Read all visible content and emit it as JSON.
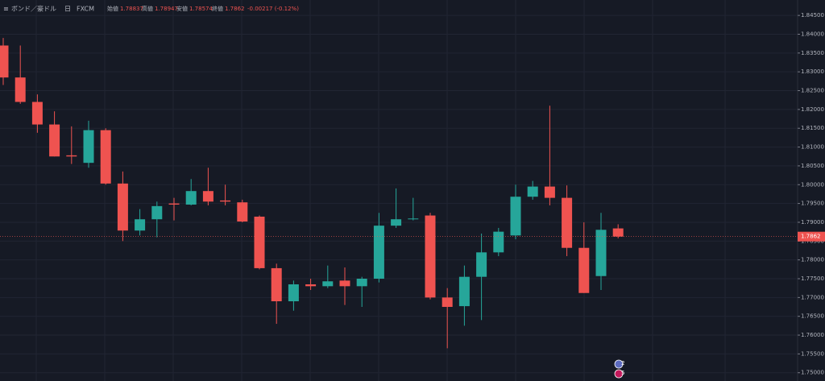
{
  "chart_data": {
    "type": "candlestick",
    "title": "ボンド／豪ドル",
    "interval": "日",
    "source": "FXCM",
    "legend": [
      {
        "label": "始値",
        "value": 1.78837
      },
      {
        "label": "高値",
        "value": 1.78947
      },
      {
        "label": "安値",
        "value": 1.78574
      },
      {
        "label": "終値",
        "value": 1.7862
      }
    ],
    "change": "-0.00217 (-0.12%)",
    "up_color": "#26a69a",
    "down_color": "#ef5350",
    "grid": true,
    "markers": [
      "2",
      "5"
    ],
    "open": [
      1.837,
      1.8285,
      1.822,
      1.816,
      1.8078,
      1.8058,
      1.8145,
      1.8003,
      1.7878,
      1.7908,
      1.795,
      1.7947,
      1.7983,
      1.7958,
      1.7953,
      1.7915,
      1.7778,
      1.769,
      1.7735,
      1.773,
      1.7745,
      1.773,
      1.775,
      1.7891,
      1.7908,
      1.7918,
      1.77,
      1.7677,
      1.7755,
      1.782,
      1.7865,
      1.7968,
      1.7995,
      1.7965,
      1.7832,
      1.7757,
      1.78837
    ],
    "high": [
      1.839,
      1.837,
      1.824,
      1.8195,
      1.8155,
      1.817,
      1.815,
      1.8035,
      1.7935,
      1.7955,
      1.7965,
      1.8015,
      1.8045,
      1.8,
      1.796,
      1.7918,
      1.779,
      1.7745,
      1.775,
      1.7785,
      1.778,
      1.7755,
      1.7925,
      1.799,
      1.7965,
      1.7925,
      1.7725,
      1.7785,
      1.787,
      1.7885,
      1.8,
      1.801,
      1.821,
      1.7998,
      1.79,
      1.7925,
      1.78947
    ],
    "low": [
      1.8265,
      1.8215,
      1.8138,
      1.8075,
      1.8055,
      1.8045,
      1.8,
      1.785,
      1.7865,
      1.786,
      1.7905,
      1.7945,
      1.7945,
      1.7945,
      1.79,
      1.7775,
      1.763,
      1.7665,
      1.772,
      1.7725,
      1.768,
      1.7675,
      1.774,
      1.7885,
      1.7905,
      1.7695,
      1.7565,
      1.7625,
      1.764,
      1.781,
      1.7855,
      1.796,
      1.7945,
      1.781,
      1.7712,
      1.772,
      1.78574
    ],
    "close": [
      1.8285,
      1.822,
      1.816,
      1.8075,
      1.8075,
      1.8145,
      1.8003,
      1.7878,
      1.7908,
      1.7943,
      1.7947,
      1.7983,
      1.7955,
      1.7955,
      1.7902,
      1.7778,
      1.769,
      1.7735,
      1.773,
      1.7743,
      1.773,
      1.775,
      1.7891,
      1.7908,
      1.791,
      1.77,
      1.7675,
      1.7755,
      1.782,
      1.7875,
      1.7968,
      1.7995,
      1.7965,
      1.7832,
      1.7712,
      1.788,
      1.7862
    ],
    "ylim": [
      1.7478,
      1.8491
    ],
    "yticks": [
      {
        "value": 1.75,
        "label": "1.75000"
      },
      {
        "value": 1.755,
        "label": "1.75500"
      },
      {
        "value": 1.76,
        "label": "1.76000"
      },
      {
        "value": 1.765,
        "label": "1.76500"
      },
      {
        "value": 1.77,
        "label": "1.77000"
      },
      {
        "value": 1.775,
        "label": "1.77500"
      },
      {
        "value": 1.78,
        "label": "1.78000"
      },
      {
        "value": 1.785,
        "label": "1.78500"
      },
      {
        "value": 1.79,
        "label": "1.79000"
      },
      {
        "value": 1.795,
        "label": "1.79500"
      },
      {
        "value": 1.8,
        "label": "1.80000"
      },
      {
        "value": 1.805,
        "label": "1.80500"
      },
      {
        "value": 1.81,
        "label": "1.81000"
      },
      {
        "value": 1.815,
        "label": "1.81500"
      },
      {
        "value": 1.82,
        "label": "1.82000"
      },
      {
        "value": 1.825,
        "label": "1.82500"
      },
      {
        "value": 1.83,
        "label": "1.83000"
      },
      {
        "value": 1.835,
        "label": "1.83500"
      },
      {
        "value": 1.84,
        "label": "1.84000"
      },
      {
        "value": 1.845,
        "label": "1.84500"
      }
    ]
  }
}
